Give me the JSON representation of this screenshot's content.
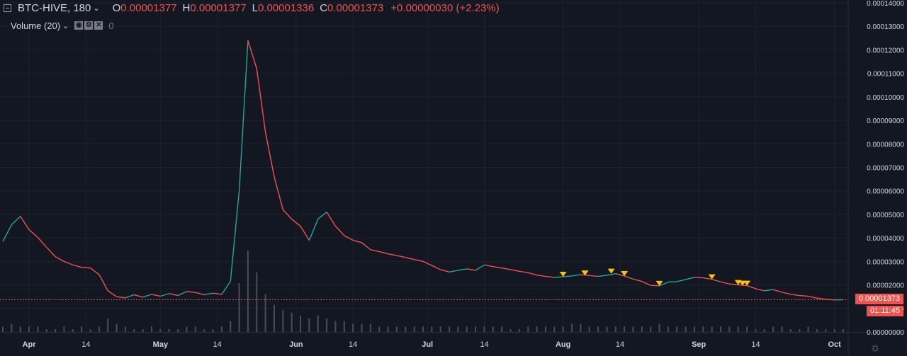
{
  "header": {
    "symbol": "BTC-HIVE, 180",
    "open_key": "O",
    "open": "0.00001377",
    "high_key": "H",
    "high": "0.00001377",
    "low_key": "L",
    "low": "0.00001336",
    "close_key": "C",
    "close": "0.00001373",
    "change": "+0.00000030 (+2.23%)"
  },
  "volume_indicator": {
    "label": "Volume (20)",
    "value": "0"
  },
  "last_price_tag": "0.00001373",
  "countdown_tag": "01:11:45",
  "colors": {
    "background": "#131722",
    "up": "#26a69a",
    "down": "#ef5350",
    "marker": "#ffc107",
    "volume": "#4a4d57"
  },
  "chart_data": {
    "type": "line",
    "x_axis_ticks": [
      "Apr",
      "14",
      "May",
      "14",
      "Jun",
      "14",
      "Jul",
      "14",
      "Aug",
      "14",
      "Sep",
      "14",
      "Oct"
    ],
    "y_axis_ticks": [
      "0.00000000",
      "0.00001000",
      "0.00002000",
      "0.00003000",
      "0.00004000",
      "0.00005000",
      "0.00006000",
      "0.00007000",
      "0.00008000",
      "0.00009000",
      "0.00010000",
      "0.00011000",
      "0.00012000",
      "0.00013000",
      "0.00014000"
    ],
    "y_range": [
      0,
      0.00014
    ],
    "series": [
      {
        "x": [
          0,
          2,
          4,
          6,
          8,
          10,
          12,
          14,
          16,
          18,
          20,
          22,
          24,
          26,
          28,
          30,
          32,
          34,
          36,
          38,
          40,
          42,
          44,
          46,
          48,
          50,
          52,
          54,
          56,
          58,
          60,
          62,
          64,
          66,
          68,
          70,
          72,
          74,
          76,
          78,
          80,
          82,
          84,
          86,
          88,
          90,
          92,
          94,
          96,
          98,
          100,
          102,
          104,
          106,
          108,
          110,
          112,
          114,
          116,
          118,
          120,
          122,
          124,
          126,
          128,
          130,
          132,
          134,
          136,
          138,
          140,
          142,
          144,
          146,
          148,
          150,
          152,
          154,
          156,
          158,
          160,
          162,
          164,
          166,
          168,
          170,
          172,
          174,
          176,
          178,
          180,
          182,
          184,
          186,
          188,
          190,
          192
        ],
        "values": [
          3.85e-05,
          4.56e-05,
          4.92e-05,
          4.35e-05,
          4.02e-05,
          3.6e-05,
          3.2e-05,
          3e-05,
          2.85e-05,
          2.75e-05,
          2.72e-05,
          2.44e-05,
          1.75e-05,
          1.5e-05,
          1.45e-05,
          1.58e-05,
          1.48e-05,
          1.6e-05,
          1.52e-05,
          1.63e-05,
          1.55e-05,
          1.72e-05,
          1.68e-05,
          1.58e-05,
          1.65e-05,
          1.6e-05,
          2.15e-05,
          6e-05,
          0.000124,
          0.000112,
          8.5e-05,
          6.6e-05,
          5.2e-05,
          4.8e-05,
          4.5e-05,
          3.9e-05,
          4.8e-05,
          5.1e-05,
          4.5e-05,
          4.1e-05,
          3.9e-05,
          3.8e-05,
          3.5e-05,
          3.42e-05,
          3.32e-05,
          3.25e-05,
          3.17e-05,
          3.08e-05,
          3e-05,
          2.83e-05,
          2.65e-05,
          2.55e-05,
          2.62e-05,
          2.68e-05,
          2.62e-05,
          2.85e-05,
          2.78e-05,
          2.72e-05,
          2.65e-05,
          2.58e-05,
          2.52e-05,
          2.42e-05,
          2.36e-05,
          2.32e-05,
          2.35e-05,
          2.38e-05,
          2.44e-05,
          2.4e-05,
          2.36e-05,
          2.41e-05,
          2.48e-05,
          2.38e-05,
          2.25e-05,
          2.15e-05,
          1.98e-05,
          1.96e-05,
          2.12e-05,
          2.14e-05,
          2.23e-05,
          2.32e-05,
          2.3e-05,
          2.24e-05,
          2.13e-05,
          2.04e-05,
          2e-05,
          1.97e-05,
          1.84e-05,
          1.75e-05,
          1.8e-05,
          1.69e-05,
          1.6e-05,
          1.55e-05,
          1.52e-05,
          1.44e-05,
          1.39e-05,
          1.36e-05,
          1.37e-05
        ]
      }
    ],
    "volume": [
      2,
      3,
      2,
      2,
      2,
      1,
      1,
      2,
      1,
      2,
      1,
      2,
      5,
      3,
      2,
      1,
      1,
      2,
      1,
      1,
      1,
      2,
      2,
      1,
      1,
      2,
      4,
      18,
      30,
      22,
      14,
      10,
      8,
      7,
      6,
      5,
      6,
      5,
      4,
      4,
      3,
      3,
      3,
      2,
      2,
      2,
      2,
      2,
      2,
      2,
      2,
      2,
      2,
      2,
      2,
      2,
      2,
      2,
      1,
      1,
      2,
      2,
      2,
      2,
      2,
      3,
      3,
      2,
      2,
      2,
      2,
      2,
      2,
      2,
      2,
      3,
      2,
      2,
      2,
      2,
      2,
      2,
      2,
      2,
      2,
      2,
      1,
      1,
      2,
      2,
      1,
      1,
      2,
      1,
      1,
      1,
      1
    ]
  }
}
